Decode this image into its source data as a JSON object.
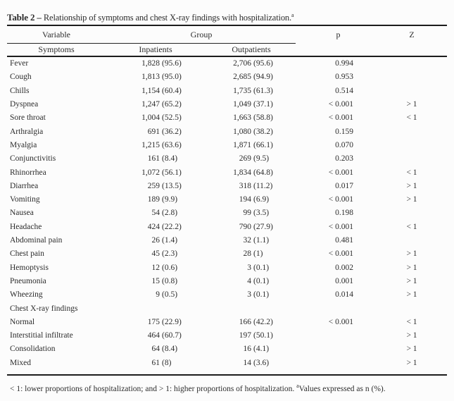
{
  "title": {
    "label": "Table 2",
    "separator": " – ",
    "text": "Relationship of symptoms and chest X-ray findings with hospitalization.",
    "footnote_marker": "a"
  },
  "header": {
    "variable": "Variable",
    "group": "Group",
    "p": "p",
    "z": "Z",
    "symptoms": "Symptoms",
    "inpatients": "Inpatients",
    "outpatients": "Outpatients"
  },
  "rows": [
    {
      "label": "Fever",
      "inpatients_n": "1,828",
      "inpatients_pct": "(95.6)",
      "outpatients_n": "2,706",
      "outpatients_pct": "(95.6)",
      "p": "0.994",
      "z": ""
    },
    {
      "label": "Cough",
      "inpatients_n": "1,813",
      "inpatients_pct": "(95.0)",
      "outpatients_n": "2,685",
      "outpatients_pct": "(94.9)",
      "p": "0.953",
      "z": ""
    },
    {
      "label": "Chills",
      "inpatients_n": "1,154",
      "inpatients_pct": "(60.4)",
      "outpatients_n": "1,735",
      "outpatients_pct": "(61.3)",
      "p": "0.514",
      "z": ""
    },
    {
      "label": "Dyspnea",
      "inpatients_n": "1,247",
      "inpatients_pct": "(65.2)",
      "outpatients_n": "1,049",
      "outpatients_pct": "(37.1)",
      "p": "< 0.001",
      "z": "> 1"
    },
    {
      "label": "Sore throat",
      "inpatients_n": "1,004",
      "inpatients_pct": "(52.5)",
      "outpatients_n": "1,663",
      "outpatients_pct": "(58.8)",
      "p": "< 0.001",
      "z": "< 1"
    },
    {
      "label": "Arthralgia",
      "inpatients_n": "691",
      "inpatients_pct": "(36.2)",
      "outpatients_n": "1,080",
      "outpatients_pct": "(38.2)",
      "p": "0.159",
      "z": ""
    },
    {
      "label": "Myalgia",
      "inpatients_n": "1,215",
      "inpatients_pct": "(63.6)",
      "outpatients_n": "1,871",
      "outpatients_pct": "(66.1)",
      "p": "0.070",
      "z": ""
    },
    {
      "label": "Conjunctivitis",
      "inpatients_n": "161",
      "inpatients_pct": "(8.4)",
      "outpatients_n": "269",
      "outpatients_pct": "(9.5)",
      "p": "0.203",
      "z": ""
    },
    {
      "label": "Rhinorrhea",
      "inpatients_n": "1,072",
      "inpatients_pct": "(56.1)",
      "outpatients_n": "1,834",
      "outpatients_pct": "(64.8)",
      "p": "< 0.001",
      "z": "< 1"
    },
    {
      "label": "Diarrhea",
      "inpatients_n": "259",
      "inpatients_pct": "(13.5)",
      "outpatients_n": "318",
      "outpatients_pct": "(11.2)",
      "p": "0.017",
      "z": "> 1"
    },
    {
      "label": "Vomiting",
      "inpatients_n": "189",
      "inpatients_pct": "(9.9)",
      "outpatients_n": "194",
      "outpatients_pct": "(6.9)",
      "p": "< 0.001",
      "z": "> 1"
    },
    {
      "label": "Nausea",
      "inpatients_n": "54",
      "inpatients_pct": "(2.8)",
      "outpatients_n": "99",
      "outpatients_pct": "(3.5)",
      "p": "0.198",
      "z": ""
    },
    {
      "label": "Headache",
      "inpatients_n": "424",
      "inpatients_pct": "(22.2)",
      "outpatients_n": "790",
      "outpatients_pct": "(27.9)",
      "p": "< 0.001",
      "z": "< 1"
    },
    {
      "label": "Abdominal pain",
      "inpatients_n": "26",
      "inpatients_pct": "(1.4)",
      "outpatients_n": "32",
      "outpatients_pct": "(1.1)",
      "p": "0.481",
      "z": ""
    },
    {
      "label": "Chest pain",
      "inpatients_n": "45",
      "inpatients_pct": "(2.3)",
      "outpatients_n": "28",
      "outpatients_pct": "(1)",
      "p": "< 0.001",
      "z": "> 1"
    },
    {
      "label": "Hemoptysis",
      "inpatients_n": "12",
      "inpatients_pct": "(0.6)",
      "outpatients_n": "3",
      "outpatients_pct": "(0.1)",
      "p": "0.002",
      "z": "> 1"
    },
    {
      "label": "Pneumonia",
      "inpatients_n": "15",
      "inpatients_pct": "(0.8)",
      "outpatients_n": "4",
      "outpatients_pct": "(0.1)",
      "p": "0.001",
      "z": "> 1"
    },
    {
      "label": "Wheezing",
      "inpatients_n": "9",
      "inpatients_pct": "(0.5)",
      "outpatients_n": "3",
      "outpatients_pct": "(0.1)",
      "p": "0.014",
      "z": "> 1"
    },
    {
      "label": "Chest X-ray findings",
      "section": true,
      "inpatients_n": "",
      "inpatients_pct": "",
      "outpatients_n": "",
      "outpatients_pct": "",
      "p": "",
      "z": ""
    },
    {
      "label": "Normal",
      "inpatients_n": "175",
      "inpatients_pct": "(22.9)",
      "outpatients_n": "166",
      "outpatients_pct": "(42.2)",
      "p": "< 0.001",
      "z": "< 1"
    },
    {
      "label": "Interstitial infiltrate",
      "inpatients_n": "464",
      "inpatients_pct": "(60.7)",
      "outpatients_n": "197",
      "outpatients_pct": "(50.1)",
      "p": "",
      "z": "> 1"
    },
    {
      "label": "Consolidation",
      "inpatients_n": "64",
      "inpatients_pct": "(8.4)",
      "outpatients_n": "16",
      "outpatients_pct": "(4.1)",
      "p": "",
      "z": "> 1"
    },
    {
      "label": "Mixed",
      "inpatients_n": "61",
      "inpatients_pct": "(8)",
      "outpatients_n": "14",
      "outpatients_pct": "(3.6)",
      "p": "",
      "z": "> 1"
    }
  ],
  "footnote": {
    "part1": "< 1: lower proportions of hospitalization; and > 1: higher proportions of hospitalization. ",
    "marker": "a",
    "part2": "Values expressed as n (%)."
  }
}
